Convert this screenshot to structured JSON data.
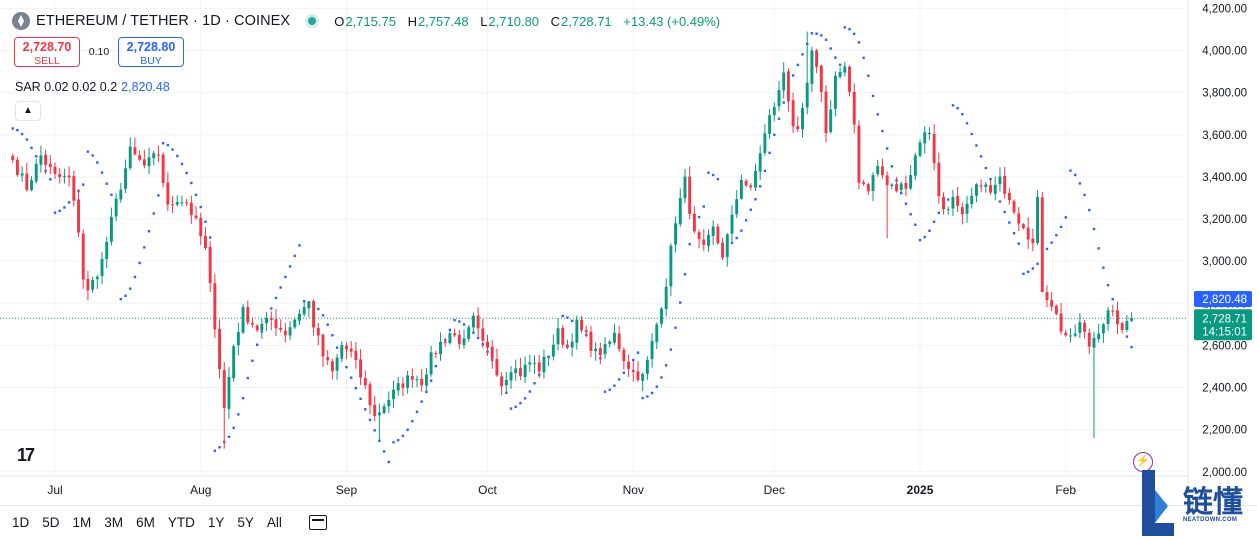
{
  "header": {
    "title": "ETHEREUM / TETHER · 1D · COINEX",
    "ohlc": [
      {
        "key": "O",
        "value": "2,715.75"
      },
      {
        "key": "H",
        "value": "2,757.48"
      },
      {
        "key": "L",
        "value": "2,710.80"
      },
      {
        "key": "C",
        "value": "2,728.71"
      }
    ],
    "change": "+13.43 (+0.49%)"
  },
  "trade": {
    "sell_price": "2,728.70",
    "sell_label": "SELL",
    "spread": "0.10",
    "buy_price": "2,728.80",
    "buy_label": "BUY"
  },
  "indicator": {
    "label": "SAR 0.02 0.02 0.2",
    "value": "2,820.48"
  },
  "collapse_icon": "chevron-up-icon",
  "timeframes": [
    "1D",
    "5D",
    "1M",
    "3M",
    "6M",
    "YTD",
    "1Y",
    "5Y",
    "All"
  ],
  "logo_text": "17",
  "brand": {
    "cn": "链懂",
    "en": "NEATDOWN.COM"
  },
  "chart_data": {
    "type": "candlestick",
    "title": "ETHEREUM / TETHER · 1D · COINEX",
    "y_axis": {
      "ticks": [
        2000,
        2200,
        2400,
        2600,
        2800,
        3000,
        3200,
        3400,
        3600,
        3800,
        4000,
        4200
      ],
      "ylim": [
        1980,
        4240
      ]
    },
    "x_axis": {
      "ticks": [
        {
          "label": "Jul",
          "day": 9
        },
        {
          "label": "Aug",
          "day": 40
        },
        {
          "label": "Sep",
          "day": 71
        },
        {
          "label": "Oct",
          "day": 101
        },
        {
          "label": "Nov",
          "day": 132
        },
        {
          "label": "Dec",
          "day": 162
        },
        {
          "label": "2025",
          "day": 193,
          "bold": true
        },
        {
          "label": "Feb",
          "day": 224
        }
      ],
      "xlim": [
        -1,
        250
      ]
    },
    "colors": {
      "up": "#089981",
      "down": "#f23645",
      "sar": "#2962ff",
      "price_line": "#089981"
    },
    "last_price": {
      "value": 2728.71,
      "label": "2,728.71",
      "countdown": "14:15:01"
    },
    "sar_label": {
      "value": 2820.48,
      "label": "2,820.48"
    },
    "key_points": [
      [
        0,
        3480
      ],
      [
        3,
        3350
      ],
      [
        6,
        3500
      ],
      [
        9,
        3400
      ],
      [
        12,
        3390
      ],
      [
        14,
        3150
      ],
      [
        15,
        2920
      ],
      [
        16,
        2850
      ],
      [
        19,
        3000
      ],
      [
        22,
        3280
      ],
      [
        25,
        3520
      ],
      [
        28,
        3450
      ],
      [
        31,
        3510
      ],
      [
        33,
        3250
      ],
      [
        35,
        3300
      ],
      [
        37,
        3280
      ],
      [
        39,
        3180
      ],
      [
        41,
        3050
      ],
      [
        43,
        2700
      ],
      [
        45,
        2300
      ],
      [
        47,
        2600
      ],
      [
        49,
        2760
      ],
      [
        52,
        2680
      ],
      [
        55,
        2720
      ],
      [
        58,
        2660
      ],
      [
        61,
        2760
      ],
      [
        63,
        2800
      ],
      [
        64,
        2700
      ],
      [
        66,
        2550
      ],
      [
        68,
        2470
      ],
      [
        70,
        2600
      ],
      [
        72,
        2560
      ],
      [
        75,
        2400
      ],
      [
        77,
        2260
      ],
      [
        79,
        2320
      ],
      [
        82,
        2400
      ],
      [
        85,
        2460
      ],
      [
        87,
        2430
      ],
      [
        89,
        2540
      ],
      [
        91,
        2610
      ],
      [
        93,
        2660
      ],
      [
        96,
        2610
      ],
      [
        98,
        2720
      ],
      [
        100,
        2600
      ],
      [
        102,
        2550
      ],
      [
        104,
        2420
      ],
      [
        106,
        2500
      ],
      [
        108,
        2470
      ],
      [
        110,
        2520
      ],
      [
        112,
        2490
      ],
      [
        114,
        2560
      ],
      [
        116,
        2660
      ],
      [
        118,
        2590
      ],
      [
        120,
        2700
      ],
      [
        122,
        2640
      ],
      [
        124,
        2560
      ],
      [
        126,
        2580
      ],
      [
        128,
        2650
      ],
      [
        130,
        2540
      ],
      [
        132,
        2470
      ],
      [
        134,
        2450
      ],
      [
        135,
        2520
      ],
      [
        137,
        2700
      ],
      [
        139,
        2900
      ],
      [
        141,
        3200
      ],
      [
        143,
        3380
      ],
      [
        145,
        3120
      ],
      [
        147,
        3050
      ],
      [
        149,
        3150
      ],
      [
        151,
        3030
      ],
      [
        153,
        3200
      ],
      [
        155,
        3400
      ],
      [
        157,
        3330
      ],
      [
        159,
        3520
      ],
      [
        161,
        3680
      ],
      [
        163,
        3800
      ],
      [
        164,
        3900
      ],
      [
        166,
        3650
      ],
      [
        167,
        3600
      ],
      [
        168,
        3700
      ],
      [
        170,
        3980
      ],
      [
        172,
        3820
      ],
      [
        173,
        3600
      ],
      [
        175,
        3880
      ],
      [
        177,
        3910
      ],
      [
        179,
        3650
      ],
      [
        180,
        3390
      ],
      [
        182,
        3350
      ],
      [
        184,
        3450
      ],
      [
        186,
        3360
      ],
      [
        188,
        3340
      ],
      [
        190,
        3370
      ],
      [
        191,
        3420
      ],
      [
        193,
        3580
      ],
      [
        195,
        3620
      ],
      [
        196,
        3480
      ],
      [
        197,
        3300
      ],
      [
        198,
        3250
      ],
      [
        200,
        3290
      ],
      [
        202,
        3200
      ],
      [
        204,
        3300
      ],
      [
        206,
        3380
      ],
      [
        208,
        3320
      ],
      [
        210,
        3380
      ],
      [
        212,
        3310
      ],
      [
        214,
        3200
      ],
      [
        215,
        3180
      ],
      [
        217,
        3080
      ],
      [
        218,
        3280
      ],
      [
        219,
        2870
      ],
      [
        221,
        2800
      ],
      [
        223,
        2680
      ],
      [
        225,
        2620
      ],
      [
        227,
        2700
      ],
      [
        229,
        2600
      ],
      [
        231,
        2680
      ],
      [
        233,
        2750
      ],
      [
        235,
        2720
      ],
      [
        236,
        2650
      ],
      [
        237,
        2715
      ],
      [
        238,
        2729
      ]
    ],
    "sar_segments": [
      {
        "from": 0,
        "to": 8,
        "start": 3630,
        "dir": "down"
      },
      {
        "from": 9,
        "to": 15,
        "start": 3230,
        "dir": "up"
      },
      {
        "from": 16,
        "to": 22,
        "start": 3520,
        "dir": "down"
      },
      {
        "from": 23,
        "to": 31,
        "start": 2820,
        "dir": "up"
      },
      {
        "from": 32,
        "to": 42,
        "start": 3560,
        "dir": "down"
      },
      {
        "from": 43,
        "to": 61,
        "start": 2100,
        "dir": "up"
      },
      {
        "from": 62,
        "to": 80,
        "start": 2810,
        "dir": "down"
      },
      {
        "from": 81,
        "to": 93,
        "start": 2140,
        "dir": "up"
      },
      {
        "from": 94,
        "to": 105,
        "start": 2720,
        "dir": "down"
      },
      {
        "from": 106,
        "to": 116,
        "start": 2300,
        "dir": "up"
      },
      {
        "from": 117,
        "to": 125,
        "start": 2740,
        "dir": "down"
      },
      {
        "from": 126,
        "to": 133,
        "start": 2380,
        "dir": "up"
      },
      {
        "from": 134,
        "to": 147,
        "start": 2350,
        "dir": "up"
      },
      {
        "from": 148,
        "to": 150,
        "start": 3420,
        "dir": "down"
      },
      {
        "from": 151,
        "to": 170,
        "start": 3070,
        "dir": "up"
      },
      {
        "from": 171,
        "to": 176,
        "start": 4080,
        "dir": "down"
      },
      {
        "from": 177,
        "to": 192,
        "start": 4110,
        "dir": "down"
      },
      {
        "from": 193,
        "to": 199,
        "start": 3100,
        "dir": "up"
      },
      {
        "from": 200,
        "to": 214,
        "start": 3740,
        "dir": "down"
      },
      {
        "from": 215,
        "to": 224,
        "start": 2940,
        "dir": "up"
      },
      {
        "from": 225,
        "to": 238,
        "start": 3430,
        "dir": "down"
      }
    ],
    "notable_wicks": [
      {
        "day": 45,
        "low": 2110
      },
      {
        "day": 78,
        "low": 2150
      },
      {
        "day": 169,
        "high": 4090
      },
      {
        "day": 186,
        "low": 3110
      },
      {
        "day": 219,
        "low": 2935
      },
      {
        "day": 230,
        "low": 2160
      }
    ]
  }
}
